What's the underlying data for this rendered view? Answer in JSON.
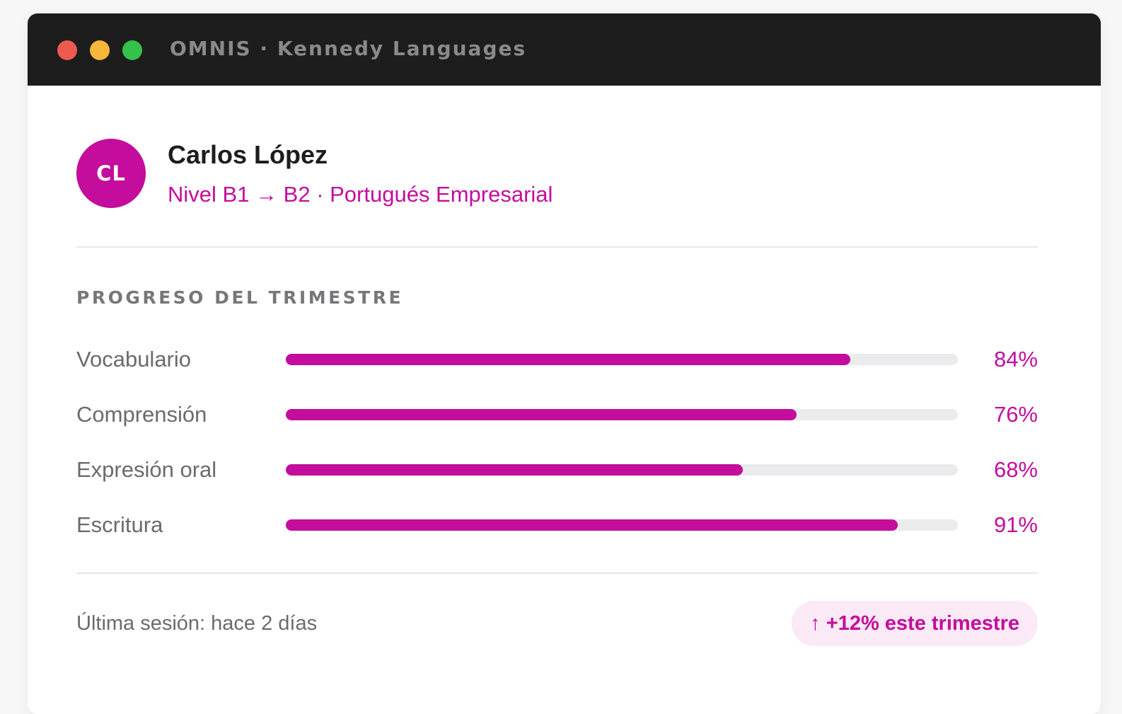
{
  "window": {
    "title": "OMNIS · Kennedy Languages"
  },
  "student": {
    "initials": "CL",
    "name": "Carlos López",
    "course": "Nivel B1 → B2 · Portugués Empresarial"
  },
  "progress": {
    "title": "PROGRESO DEL TRIMESTRE",
    "items": [
      {
        "label": "Vocabulario",
        "percent": 84,
        "display": "84%"
      },
      {
        "label": "Comprensión",
        "percent": 76,
        "display": "76%"
      },
      {
        "label": "Expresión oral",
        "percent": 68,
        "display": "68%"
      },
      {
        "label": "Escritura",
        "percent": 91,
        "display": "91%"
      }
    ]
  },
  "footer": {
    "last_session": "Última sesión: hace 2 días",
    "trend_arrow": "↑",
    "trend_text": "+12% este trimestre"
  },
  "colors": {
    "accent": "#c40c9d",
    "titlebar": "#1d1d1d",
    "close": "#ed5b4f",
    "minimize": "#f6b73a",
    "maximize": "#35c24a",
    "track": "#ebebed"
  }
}
